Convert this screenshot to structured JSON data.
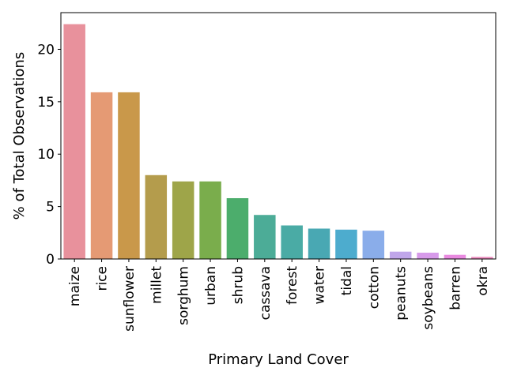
{
  "chart_data": {
    "type": "bar",
    "xlabel": "Primary Land Cover",
    "ylabel": "% of Total Observations",
    "ylim": [
      0,
      23.5
    ],
    "yticks": [
      0,
      5,
      10,
      15,
      20
    ],
    "grid": false,
    "legend": "none",
    "categories": [
      "maize",
      "rice",
      "sunflower",
      "millet",
      "sorghum",
      "urban",
      "shrub",
      "cassava",
      "forest",
      "water",
      "tidal",
      "cotton",
      "peanuts",
      "soybeans",
      "barren",
      "okra"
    ],
    "values": [
      22.4,
      15.9,
      15.9,
      8.0,
      7.4,
      7.4,
      5.8,
      4.2,
      3.2,
      2.9,
      2.8,
      2.7,
      0.7,
      0.6,
      0.4,
      0.2
    ],
    "colors": [
      "#e8919c",
      "#e59a74",
      "#c9984a",
      "#b49c4c",
      "#9ea549",
      "#7aad4c",
      "#4cad6c",
      "#4cac97",
      "#4aaba5",
      "#49a8b3",
      "#4dacce",
      "#8aadea",
      "#c0a6ea",
      "#d79aea",
      "#e98ae0",
      "#ec8bbe"
    ]
  }
}
